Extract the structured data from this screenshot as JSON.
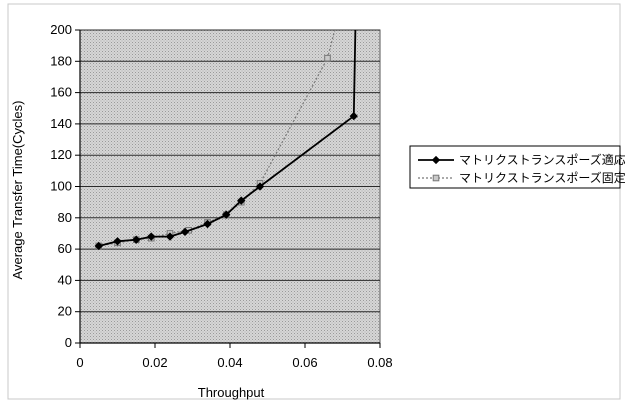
{
  "chart_data": {
    "type": "line",
    "title": "",
    "xlabel": "Throughput",
    "ylabel": "Average Transfer Time(Cycles)",
    "xlim": [
      0,
      0.08
    ],
    "ylim": [
      0,
      200
    ],
    "xticks": [
      0,
      0.02,
      0.04,
      0.06,
      0.08
    ],
    "xtick_labels": [
      "0",
      "0.02",
      "0.04",
      "0.06",
      "0.08"
    ],
    "yticks": [
      0,
      20,
      40,
      60,
      80,
      100,
      120,
      140,
      160,
      180,
      200
    ],
    "ytick_labels": [
      "0",
      "20",
      "40",
      "60",
      "80",
      "100",
      "120",
      "140",
      "160",
      "180",
      "200"
    ],
    "grid": "horizontal",
    "legend_position": "right",
    "series": [
      {
        "name": "マトリクストランスポーズ適応",
        "color": "#000000",
        "marker": "diamond",
        "line_style": "solid",
        "x": [
          0.005,
          0.01,
          0.015,
          0.019,
          0.024,
          0.028,
          0.034,
          0.039,
          0.043,
          0.048,
          0.073,
          0.0735
        ],
        "y": [
          62,
          65,
          66,
          68,
          68,
          71,
          76,
          82,
          91,
          100,
          145,
          208
        ]
      },
      {
        "name": "マトリクストランスポーズ固定",
        "color": "#777777",
        "marker": "square",
        "line_style": "dotted",
        "x": [
          0.005,
          0.01,
          0.015,
          0.019,
          0.024,
          0.029,
          0.034,
          0.039,
          0.043,
          0.048,
          0.066,
          0.069
        ],
        "y": [
          62,
          64,
          66,
          67,
          70,
          72,
          77,
          82,
          90,
          102,
          182,
          210
        ]
      }
    ]
  }
}
